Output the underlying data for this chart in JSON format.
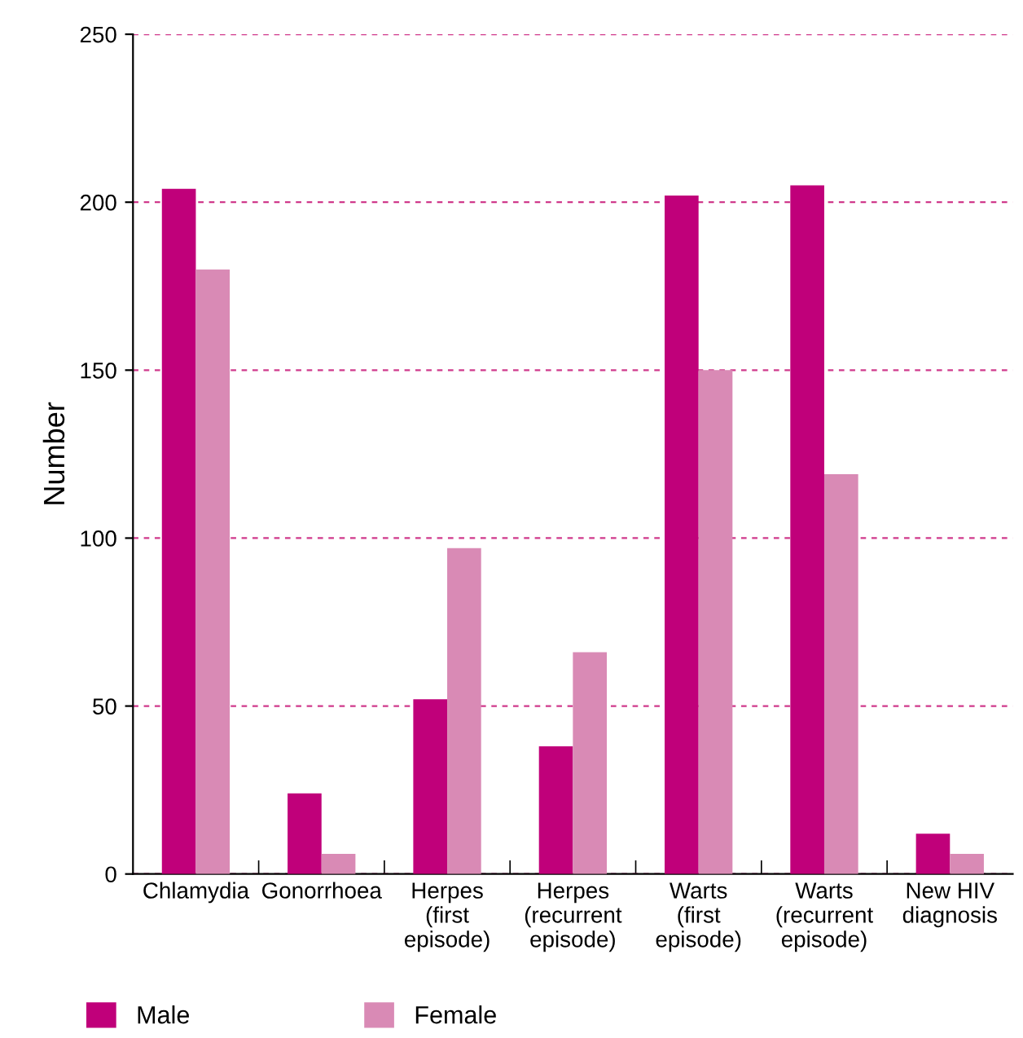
{
  "chart_data": {
    "type": "bar",
    "ylabel": "Number",
    "categories": [
      "Chlamydia",
      "Gonorrhoea",
      "Herpes\n(first\nepisode)",
      "Herpes\n(recurrent\nepisode)",
      "Warts\n(first\nepisode)",
      "Warts\n(recurrent\nepisode)",
      "New HIV\ndiagnosis"
    ],
    "series": [
      {
        "name": "Male",
        "color": "#c0007a",
        "values": [
          204,
          24,
          52,
          38,
          202,
          205,
          12
        ]
      },
      {
        "name": "Female",
        "color": "#d98ab5",
        "values": [
          180,
          6,
          97,
          66,
          150,
          119,
          6
        ]
      }
    ],
    "ylim": [
      0,
      250
    ],
    "yticks": [
      0,
      50,
      100,
      150,
      200,
      250
    ],
    "grid": "y",
    "legend": "bottom"
  }
}
